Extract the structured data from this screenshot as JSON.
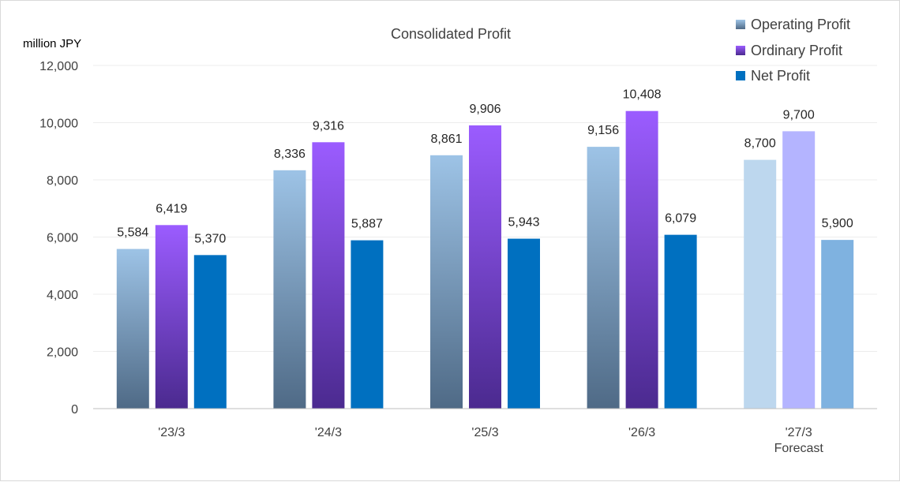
{
  "chart_data": {
    "type": "bar",
    "title": "Consolidated Profit",
    "ylabel": "million JPY",
    "ylim": [
      0,
      12000
    ],
    "yticks": [
      0,
      2000,
      4000,
      6000,
      8000,
      10000,
      12000
    ],
    "ytick_labels": [
      "0",
      "2,000",
      "4,000",
      "6,000",
      "8,000",
      "10,000",
      "12,000"
    ],
    "grid": true,
    "legend_position": "top-right",
    "categories": [
      {
        "label": "'23/3",
        "sublabel": ""
      },
      {
        "label": "'24/3",
        "sublabel": ""
      },
      {
        "label": "'25/3",
        "sublabel": ""
      },
      {
        "label": "'26/3",
        "sublabel": ""
      },
      {
        "label": "'27/3",
        "sublabel": "Forecast"
      }
    ],
    "series": [
      {
        "name": "Operating Profit",
        "values": [
          5584,
          8336,
          8861,
          9156,
          8700
        ],
        "value_labels": [
          "5,584",
          "8,336",
          "8,861",
          "9,156",
          "8,700"
        ],
        "gradient_top": "#9dc3e6",
        "gradient_bottom": "#4f6a86",
        "forecast_color": "#bdd7ee"
      },
      {
        "name": "Ordinary Profit",
        "values": [
          6419,
          9316,
          9906,
          10408,
          9700
        ],
        "value_labels": [
          "6,419",
          "9,316",
          "9,906",
          "10,408",
          "9,700"
        ],
        "gradient_top": "#9b5cff",
        "gradient_bottom": "#4b2a8f",
        "forecast_color": "#b4b4ff"
      },
      {
        "name": "Net Profit",
        "values": [
          5370,
          5887,
          5943,
          6079,
          5900
        ],
        "value_labels": [
          "5,370",
          "5,887",
          "5,943",
          "6,079",
          "5,900"
        ],
        "color": "#0070c0",
        "forecast_color": "#7fb2e0"
      }
    ]
  }
}
